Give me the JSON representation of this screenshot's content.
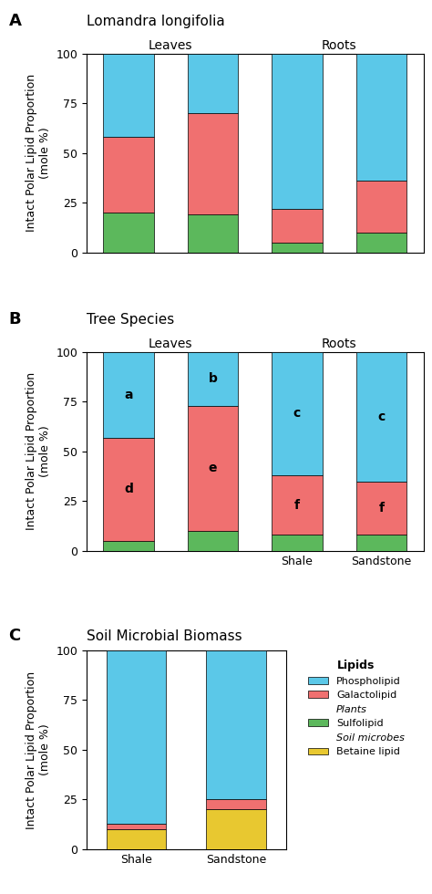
{
  "chart_data": [
    {
      "type": "bar",
      "stacked": true,
      "panel_label": "A",
      "title": "Lomandra longifolia",
      "ylabel": "Intact Polar Lipid Proportion\n(mole %)",
      "categories": [
        null,
        null,
        null,
        null
      ],
      "groups": [
        {
          "name": "Leaves",
          "size": 2
        },
        {
          "name": "Roots",
          "size": 2
        }
      ],
      "series": [
        {
          "name": "Sulfolipid",
          "color": "#5CB85C",
          "values": [
            20,
            19,
            5,
            10
          ]
        },
        {
          "name": "Galactolipid",
          "color": "#F07070",
          "values": [
            38,
            51,
            17,
            26
          ]
        },
        {
          "name": "Phospholipid",
          "color": "#5BC8E8",
          "values": [
            42,
            30,
            78,
            64
          ]
        }
      ],
      "ylim": [
        0,
        100
      ],
      "yticks": [
        0,
        25,
        50,
        75,
        100
      ]
    },
    {
      "type": "bar",
      "stacked": true,
      "panel_label": "B",
      "title": "Tree Species",
      "ylabel": "Intact Polar Lipid Proportion\n(mole %)",
      "categories": [
        null,
        null,
        "Shale",
        "Sandstone"
      ],
      "groups": [
        {
          "name": "Leaves",
          "size": 2
        },
        {
          "name": "Roots",
          "size": 2
        }
      ],
      "series": [
        {
          "name": "Sulfolipid",
          "color": "#5CB85C",
          "values": [
            5,
            10,
            8,
            8
          ]
        },
        {
          "name": "Galactolipid",
          "color": "#F07070",
          "values": [
            52,
            63,
            30,
            27
          ]
        },
        {
          "name": "Phospholipid",
          "color": "#5BC8E8",
          "values": [
            43,
            27,
            62,
            65
          ]
        }
      ],
      "annotations": [
        {
          "text": "a",
          "category": 0,
          "series": "Phospholipid"
        },
        {
          "text": "d",
          "category": 0,
          "series": "Galactolipid"
        },
        {
          "text": "b",
          "category": 1,
          "series": "Phospholipid"
        },
        {
          "text": "e",
          "category": 1,
          "series": "Galactolipid"
        },
        {
          "text": "c",
          "category": 2,
          "series": "Phospholipid"
        },
        {
          "text": "f",
          "category": 2,
          "series": "Galactolipid"
        },
        {
          "text": "c",
          "category": 3,
          "series": "Phospholipid"
        },
        {
          "text": "f",
          "category": 3,
          "series": "Galactolipid"
        }
      ],
      "ylim": [
        0,
        100
      ],
      "yticks": [
        0,
        25,
        50,
        75,
        100
      ]
    },
    {
      "type": "bar",
      "stacked": true,
      "panel_label": "C",
      "title": "Soil Microbial Biomass",
      "ylabel": "Intact Polar Lipid Proportion\n(mole %)",
      "categories": [
        "Shale",
        "Sandstone"
      ],
      "series": [
        {
          "name": "Betaine lipid",
          "color": "#E8C830",
          "values": [
            10,
            20
          ]
        },
        {
          "name": "Galactolipid",
          "color": "#F07070",
          "values": [
            3,
            5
          ]
        },
        {
          "name": "Phospholipid",
          "color": "#5BC8E8",
          "values": [
            87,
            75
          ]
        }
      ],
      "ylim": [
        0,
        100
      ],
      "yticks": [
        0,
        25,
        50,
        75,
        100
      ]
    }
  ],
  "legend_box": {
    "title": "Lipids",
    "items": [
      {
        "series": "Phospholipid"
      },
      {
        "series": "Galactolipid"
      },
      {
        "header": "Plants"
      },
      {
        "series": "Sulfolipid"
      },
      {
        "header": "Soil microbes"
      },
      {
        "series": "Betaine lipid"
      }
    ]
  }
}
